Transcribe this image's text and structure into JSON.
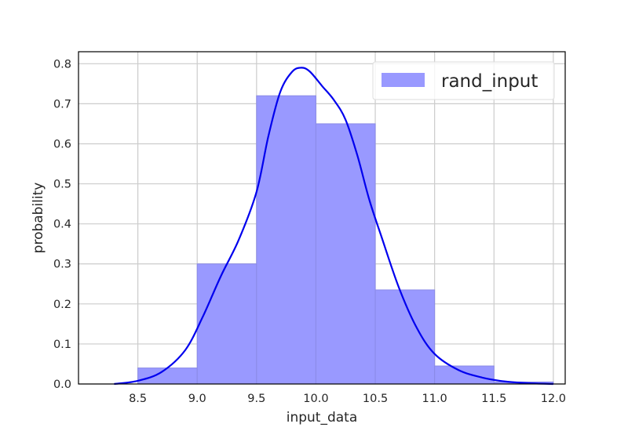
{
  "chart_data": {
    "type": "bar",
    "subtype": "histogram with kde line",
    "xlabel": "input_data",
    "ylabel": "probability",
    "xlim": [
      8.0,
      12.1
    ],
    "ylim": [
      0.0,
      0.83
    ],
    "xticks": [
      "8.5",
      "9.0",
      "9.5",
      "10.0",
      "10.5",
      "11.0",
      "11.5",
      "12.0"
    ],
    "yticks": [
      "0.0",
      "0.1",
      "0.2",
      "0.3",
      "0.4",
      "0.5",
      "0.6",
      "0.7",
      "0.8"
    ],
    "grid": true,
    "legend": {
      "position": "top-right",
      "entries": [
        "rand_input"
      ]
    },
    "colors": {
      "bars": "#9999ff",
      "bar_edge": "#8a8ae6",
      "kde": "#0000ee",
      "grid": "#cccccc"
    },
    "series": [
      {
        "name": "rand_input",
        "kind": "histogram",
        "bins": [
          {
            "from": 8.5,
            "to": 9.0,
            "value": 0.04
          },
          {
            "from": 9.0,
            "to": 9.5,
            "value": 0.3
          },
          {
            "from": 9.5,
            "to": 10.0,
            "value": 0.72
          },
          {
            "from": 10.0,
            "to": 10.5,
            "value": 0.65
          },
          {
            "from": 10.5,
            "to": 11.0,
            "value": 0.235
          },
          {
            "from": 11.0,
            "to": 11.5,
            "value": 0.045
          },
          {
            "from": 11.5,
            "to": 12.0,
            "value": 0.005
          }
        ]
      },
      {
        "kind": "kde",
        "x": [
          8.3,
          8.5,
          8.7,
          8.9,
          9.05,
          9.2,
          9.35,
          9.5,
          9.6,
          9.7,
          9.8,
          9.88,
          9.95,
          10.05,
          10.15,
          10.25,
          10.35,
          10.45,
          10.55,
          10.7,
          10.85,
          11.0,
          11.2,
          11.4,
          11.6,
          11.8,
          12.0
        ],
        "y": [
          0.0,
          0.008,
          0.03,
          0.085,
          0.17,
          0.27,
          0.36,
          0.48,
          0.62,
          0.73,
          0.78,
          0.79,
          0.78,
          0.745,
          0.71,
          0.66,
          0.57,
          0.46,
          0.37,
          0.24,
          0.14,
          0.075,
          0.035,
          0.016,
          0.006,
          0.002,
          0.0
        ]
      }
    ]
  }
}
